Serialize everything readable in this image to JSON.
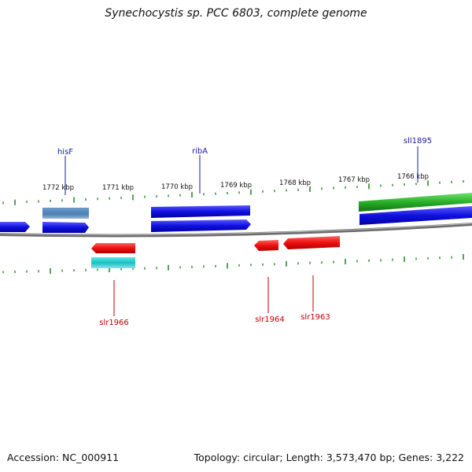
{
  "title": "Synechocystis sp. PCC 6803, complete genome",
  "footer": {
    "accession": "Accession: NC_000911",
    "topology": "Topology: circular; Length: 3,573,470 bp; Genes: 3,222"
  },
  "colors": {
    "forward_gene": "#1010e0",
    "reverse_gene": "#e81010",
    "rna_gene": "#20b020",
    "misc_forward": "#4a7fb0",
    "misc_reverse": "#20c8c8",
    "tick": "#2a8a2a",
    "backbone": "#888888",
    "forward_label": "#1a1aa0",
    "reverse_label": "#c00000"
  },
  "scale_labels": [
    "1772 kbp",
    "1771 kbp",
    "1770 kbp",
    "1769 kbp",
    "1768 kbp",
    "1767 kbp",
    "1766 kbp"
  ],
  "gene_labels": {
    "forward": [
      "hisF",
      "ribA",
      "sll1895"
    ],
    "reverse": [
      "slr1966",
      "slr1964",
      "slr1963"
    ]
  }
}
